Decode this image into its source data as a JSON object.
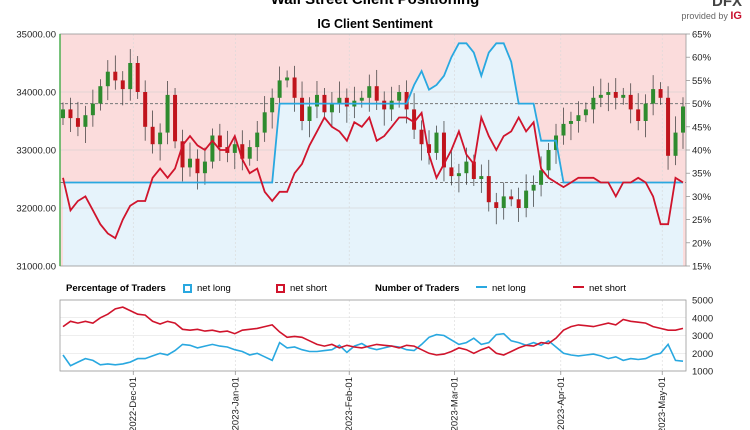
{
  "header": {
    "title": "Wall Street Client Positioning",
    "subtitle": "IG Client Sentiment",
    "logo_provided_by": "provided by",
    "logo_ig": "IG"
  },
  "legend": {
    "pct_title": "Percentage of Traders",
    "pct_long": "net long",
    "pct_short": "net short",
    "num_title": "Number of Traders",
    "num_long": "net long",
    "num_short": "net short"
  },
  "colors": {
    "long": "#29a8e0",
    "short": "#d0142c",
    "long_fill": "#e6f3fb",
    "short_fill": "#fbdcdc",
    "candle_up": "#2e8b2e",
    "candle_down": "#c0141c",
    "grid": "#cccccc"
  },
  "chart_data": [
    {
      "type": "candlestick",
      "title": "IG Client Sentiment",
      "y_left_ticks": [
        "31000.00",
        "32000.00",
        "33000.00",
        "34000.00",
        "35000.00"
      ],
      "ylim_left": [
        31000,
        35000
      ],
      "y_right_ticks": [
        "15%",
        "20%",
        "25%",
        "30%",
        "35%",
        "40%",
        "45%",
        "50%",
        "55%",
        "60%",
        "65%"
      ],
      "ylim_right": [
        15,
        65
      ],
      "reference_lines_percent": [
        33,
        50
      ],
      "x_tick_labels": [
        "2022-Dec-01",
        "2023-Jan-01",
        "2023-Feb-01",
        "2023-Mar-01",
        "2023-Apr-01",
        "2023-May-01"
      ],
      "close_series": [
        33700,
        33550,
        33400,
        33600,
        33800,
        34100,
        34350,
        34200,
        34050,
        34500,
        34000,
        33400,
        33100,
        33300,
        33950,
        33150,
        32700,
        32850,
        32600,
        32800,
        33250,
        33050,
        32950,
        33100,
        32850,
        33050,
        33300,
        33650,
        33900,
        34200,
        34250,
        33900,
        33500,
        33750,
        33950,
        33650,
        33800,
        33900,
        33750,
        33850,
        33900,
        34100,
        33850,
        33700,
        33850,
        34000,
        33700,
        33350,
        33100,
        32950,
        33300,
        32700,
        32550,
        32600,
        32800,
        32500,
        32550,
        32100,
        32000,
        32200,
        32150,
        32000,
        32300,
        32400,
        32650,
        33000,
        33250,
        33450,
        33500,
        33600,
        33700,
        33900,
        33950,
        34000,
        33900,
        33950,
        33700,
        33500,
        33800,
        34050,
        33900,
        32900,
        33300,
        33750
      ],
      "net_long_percent_series": [
        33,
        33,
        33,
        33,
        33,
        33,
        33,
        33,
        33,
        33,
        33,
        33,
        33,
        33,
        33,
        33,
        33,
        33,
        33,
        33,
        33,
        33,
        33,
        33,
        33,
        33,
        33,
        33,
        33,
        50,
        50,
        50,
        50,
        50,
        50,
        50,
        50,
        50,
        50,
        50,
        50,
        50,
        50,
        50,
        50,
        50,
        50,
        54,
        57,
        53,
        54,
        56,
        60,
        63,
        63,
        61,
        56,
        61,
        63,
        63,
        59,
        50,
        50,
        50,
        42,
        42,
        42,
        33,
        33,
        33,
        33,
        33,
        33,
        33,
        33,
        33,
        33,
        33,
        33,
        33,
        33,
        33,
        33,
        33
      ],
      "net_short_percent_series": [
        34,
        27,
        29,
        30,
        27,
        24,
        22,
        21,
        25,
        28,
        29,
        29,
        34,
        36,
        34,
        36,
        41,
        43,
        41,
        40,
        42,
        40,
        40,
        43,
        38,
        35,
        36,
        31,
        29,
        31,
        31,
        35,
        37,
        41,
        44,
        47,
        45,
        44,
        42,
        46,
        45,
        47,
        42,
        43,
        45,
        47,
        47,
        46,
        48,
        39,
        34,
        37,
        40,
        44,
        39,
        37,
        47,
        43,
        40,
        43,
        44,
        47,
        44,
        46,
        36,
        34,
        33,
        32,
        33,
        34,
        34,
        34,
        33,
        33,
        30,
        33,
        33,
        34,
        33,
        30,
        24,
        24,
        34,
        33
      ]
    },
    {
      "type": "line",
      "y_ticks": [
        "1000",
        "2000",
        "3000",
        "4000",
        "5000"
      ],
      "ylim": [
        1000,
        5000
      ],
      "x_tick_labels": [
        "2022-Dec-01",
        "2023-Jan-01",
        "2023-Feb-01",
        "2023-Mar-01",
        "2023-Apr-01",
        "2023-May-01"
      ],
      "series": [
        {
          "name": "net long",
          "values": [
            1900,
            1300,
            1500,
            1700,
            1600,
            1350,
            1400,
            1350,
            1400,
            1500,
            1700,
            1700,
            1850,
            2000,
            1900,
            2150,
            2500,
            2450,
            2300,
            2400,
            2500,
            2400,
            2350,
            2200,
            2100,
            1900,
            2000,
            1800,
            1600,
            2600,
            2300,
            2350,
            2200,
            2100,
            2100,
            2150,
            2200,
            2450,
            2050,
            2400,
            2550,
            2300,
            2200,
            2300,
            2400,
            2350,
            2200,
            2150,
            2500,
            2900,
            3050,
            3000,
            2750,
            2500,
            2600,
            2850,
            2500,
            2600,
            3050,
            3100,
            2700,
            2600,
            2450,
            2600,
            2450,
            2700,
            2350,
            2000,
            1900,
            1850,
            1900,
            1950,
            1850,
            1700,
            1800,
            1600,
            1700,
            1650,
            1700,
            1900,
            2000,
            2500,
            1600,
            1550
          ]
        },
        {
          "name": "net short",
          "values": [
            3500,
            3800,
            3700,
            3800,
            3700,
            4000,
            4200,
            4500,
            4600,
            4400,
            4200,
            4150,
            3800,
            3650,
            3800,
            3700,
            3350,
            3300,
            3350,
            3250,
            3300,
            3200,
            3250,
            3100,
            3300,
            3350,
            3400,
            3500,
            3600,
            3200,
            2900,
            2950,
            2900,
            2700,
            2500,
            2400,
            2500,
            2300,
            2450,
            2350,
            2300,
            2400,
            2500,
            2450,
            2400,
            2300,
            2450,
            2400,
            2200,
            2000,
            1900,
            1950,
            2100,
            2300,
            2200,
            2000,
            2200,
            2350,
            2000,
            1900,
            2100,
            2300,
            2450,
            2400,
            2600,
            2550,
            2850,
            3300,
            3500,
            3600,
            3550,
            3500,
            3600,
            3700,
            3600,
            3900,
            3800,
            3750,
            3700,
            3500,
            3400,
            3300,
            3300,
            3400
          ]
        }
      ]
    }
  ]
}
